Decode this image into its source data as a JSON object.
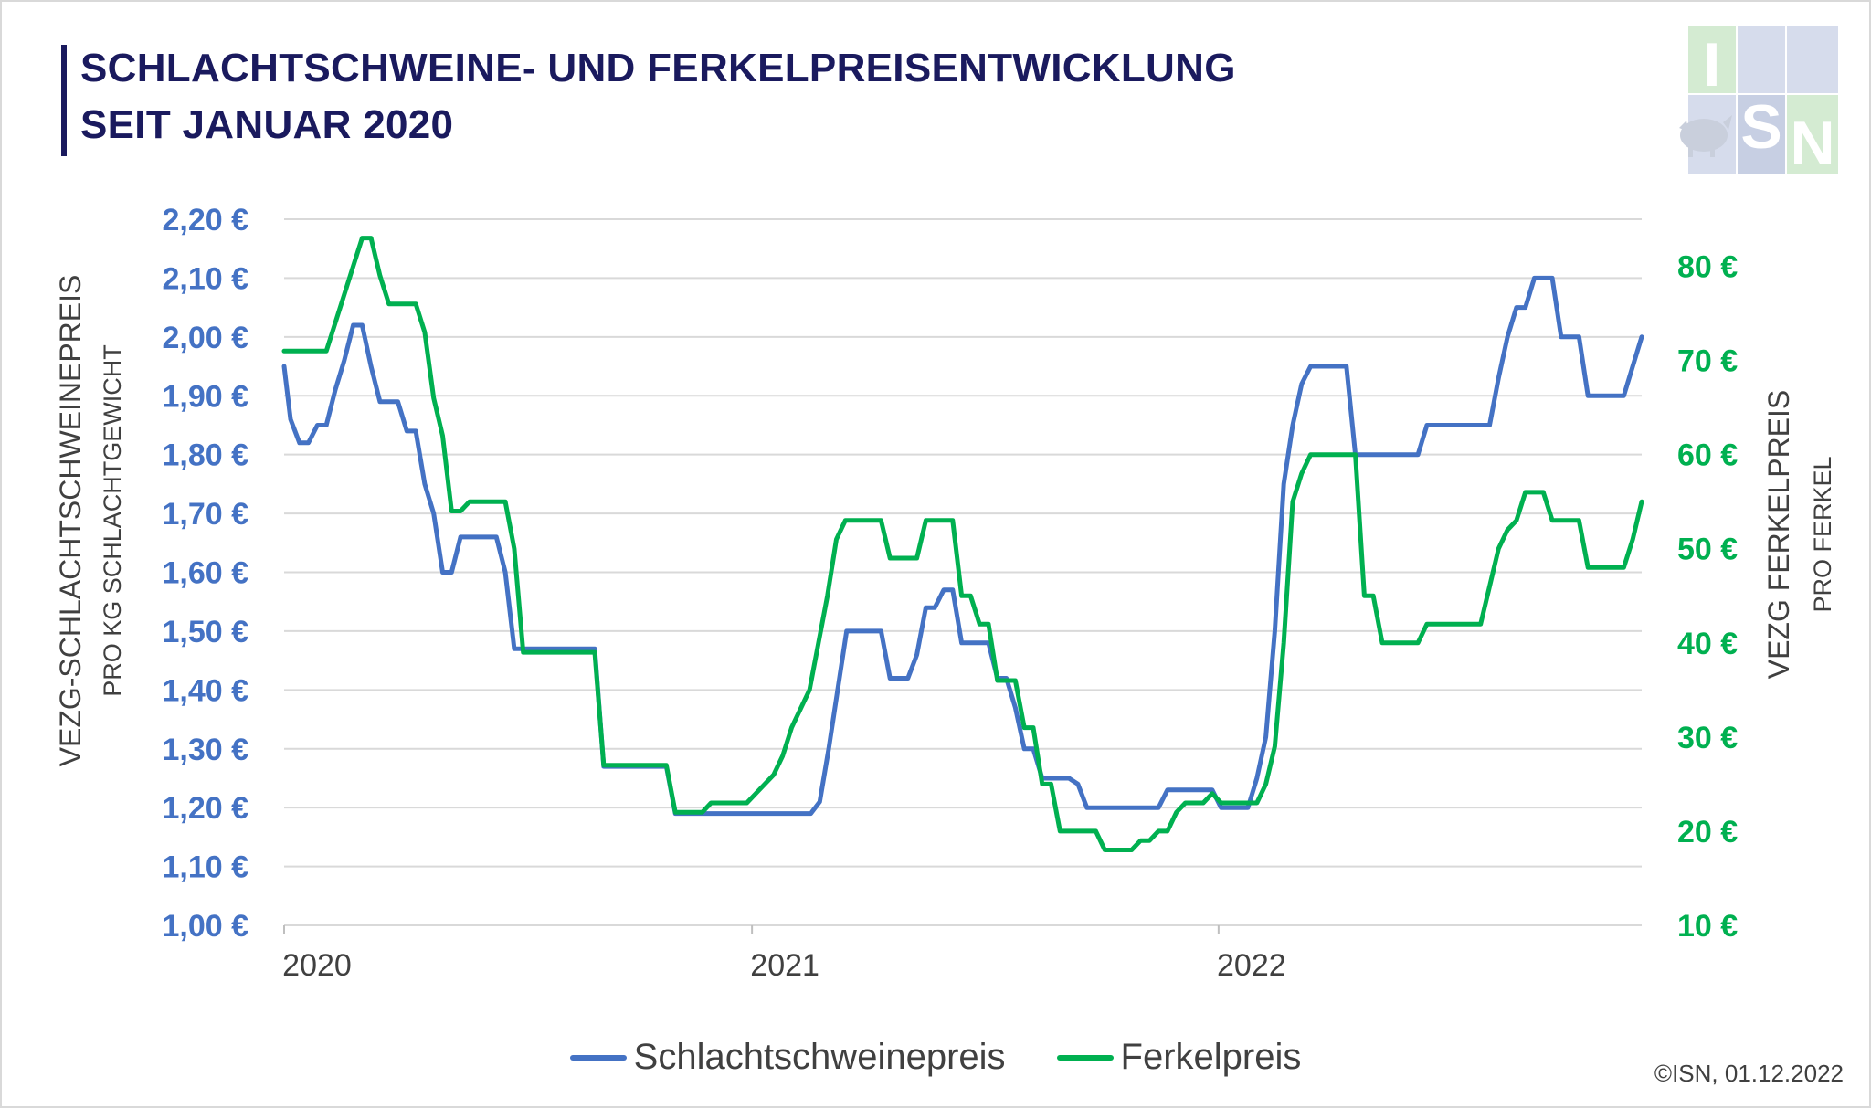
{
  "title_line1": "SCHLACHTSCHWEINE- UND FERKELPREISENTWICKLUNG",
  "title_line2": "SEIT JANUAR 2020",
  "logo": {
    "letters": [
      "I",
      "S",
      "N"
    ],
    "icon": "pig-icon",
    "colors": [
      "#d6dcec",
      "#d4ebd2",
      "#c7cfe3"
    ]
  },
  "credit": "©ISN, 01.12.2022",
  "colors": {
    "slaughter": "#4472c4",
    "piglet": "#00b050",
    "title": "#1a1a5e",
    "grid": "#d9d9d9"
  },
  "chart_data": {
    "type": "line",
    "x_axis": {
      "labels": [
        "2020",
        "2021",
        "2022"
      ],
      "range": [
        "2020-01",
        "2022-11"
      ]
    },
    "left_axis": {
      "label": "VEZG-SCHLACHTSCHWEINEPREIS",
      "sublabel": "PRO KG SCHLACHTGEWICHT",
      "min": 1.0,
      "max": 2.2,
      "ticks": [
        "1,00 €",
        "1,10 €",
        "1,20 €",
        "1,30 €",
        "1,40 €",
        "1,50 €",
        "1,60 €",
        "1,70 €",
        "1,80 €",
        "1,90 €",
        "2,00 €",
        "2,10 €",
        "2,20 €"
      ]
    },
    "right_axis": {
      "label": "VEZG FERKELPREIS",
      "sublabel": "PRO FERKEL",
      "min": 10,
      "max": 85,
      "ticks": [
        "10 €",
        "20 €",
        "30 €",
        "40 €",
        "50 €",
        "60 €",
        "70 €",
        "80 €"
      ]
    },
    "grid": true,
    "legend_position": "bottom",
    "series": [
      {
        "name": "Schlachtschweinepreis",
        "axis": "left",
        "points": [
          [
            "2020-01-01",
            1.95
          ],
          [
            "2020-01-06",
            1.86
          ],
          [
            "2020-01-13",
            1.82
          ],
          [
            "2020-01-20",
            1.82
          ],
          [
            "2020-01-27",
            1.85
          ],
          [
            "2020-02-03",
            1.85
          ],
          [
            "2020-02-10",
            1.91
          ],
          [
            "2020-02-17",
            1.96
          ],
          [
            "2020-02-24",
            2.02
          ],
          [
            "2020-03-02",
            2.02
          ],
          [
            "2020-03-09",
            1.95
          ],
          [
            "2020-03-16",
            1.89
          ],
          [
            "2020-03-23",
            1.89
          ],
          [
            "2020-03-30",
            1.89
          ],
          [
            "2020-04-06",
            1.84
          ],
          [
            "2020-04-13",
            1.84
          ],
          [
            "2020-04-20",
            1.75
          ],
          [
            "2020-04-27",
            1.7
          ],
          [
            "2020-05-04",
            1.6
          ],
          [
            "2020-05-11",
            1.6
          ],
          [
            "2020-05-18",
            1.66
          ],
          [
            "2020-05-25",
            1.66
          ],
          [
            "2020-06-15",
            1.66
          ],
          [
            "2020-06-22",
            1.6
          ],
          [
            "2020-06-29",
            1.47
          ],
          [
            "2020-07-06",
            1.47
          ],
          [
            "2020-08-31",
            1.47
          ],
          [
            "2020-09-07",
            1.27
          ],
          [
            "2020-09-14",
            1.27
          ],
          [
            "2020-10-26",
            1.27
          ],
          [
            "2020-11-02",
            1.19
          ],
          [
            "2020-11-09",
            1.19
          ],
          [
            "2021-02-16",
            1.19
          ],
          [
            "2021-02-23",
            1.21
          ],
          [
            "2021-03-02",
            1.3
          ],
          [
            "2021-03-09",
            1.4
          ],
          [
            "2021-03-16",
            1.5
          ],
          [
            "2021-04-12",
            1.5
          ],
          [
            "2021-04-19",
            1.42
          ],
          [
            "2021-04-26",
            1.42
          ],
          [
            "2021-05-03",
            1.42
          ],
          [
            "2021-05-10",
            1.46
          ],
          [
            "2021-05-17",
            1.54
          ],
          [
            "2021-05-24",
            1.54
          ],
          [
            "2021-05-31",
            1.57
          ],
          [
            "2021-06-07",
            1.57
          ],
          [
            "2021-06-14",
            1.48
          ],
          [
            "2021-06-21",
            1.48
          ],
          [
            "2021-07-05",
            1.48
          ],
          [
            "2021-07-12",
            1.42
          ],
          [
            "2021-07-19",
            1.42
          ],
          [
            "2021-07-26",
            1.37
          ],
          [
            "2021-08-02",
            1.3
          ],
          [
            "2021-08-09",
            1.3
          ],
          [
            "2021-08-16",
            1.25
          ],
          [
            "2021-08-23",
            1.25
          ],
          [
            "2021-09-06",
            1.25
          ],
          [
            "2021-09-13",
            1.24
          ],
          [
            "2021-09-20",
            1.2
          ],
          [
            "2021-09-27",
            1.2
          ],
          [
            "2021-11-15",
            1.2
          ],
          [
            "2021-11-22",
            1.23
          ],
          [
            "2021-11-29",
            1.23
          ],
          [
            "2021-12-27",
            1.23
          ],
          [
            "2022-01-03",
            1.2
          ],
          [
            "2022-01-10",
            1.2
          ],
          [
            "2022-01-24",
            1.2
          ],
          [
            "2022-01-31",
            1.25
          ],
          [
            "2022-02-07",
            1.32
          ],
          [
            "2022-02-14",
            1.5
          ],
          [
            "2022-02-21",
            1.75
          ],
          [
            "2022-02-28",
            1.85
          ],
          [
            "2022-03-07",
            1.92
          ],
          [
            "2022-03-14",
            1.95
          ],
          [
            "2022-03-21",
            1.95
          ],
          [
            "2022-04-11",
            1.95
          ],
          [
            "2022-04-18",
            1.8
          ],
          [
            "2022-04-25",
            1.8
          ],
          [
            "2022-06-06",
            1.8
          ],
          [
            "2022-06-13",
            1.85
          ],
          [
            "2022-06-20",
            1.85
          ],
          [
            "2022-08-01",
            1.85
          ],
          [
            "2022-08-08",
            1.93
          ],
          [
            "2022-08-15",
            2.0
          ],
          [
            "2022-08-22",
            2.05
          ],
          [
            "2022-08-29",
            2.05
          ],
          [
            "2022-09-05",
            2.1
          ],
          [
            "2022-09-19",
            2.1
          ],
          [
            "2022-09-26",
            2.0
          ],
          [
            "2022-10-10",
            2.0
          ],
          [
            "2022-10-17",
            1.9
          ],
          [
            "2022-11-14",
            1.9
          ],
          [
            "2022-11-21",
            1.95
          ],
          [
            "2022-11-28",
            2.0
          ]
        ]
      },
      {
        "name": "Ferkelpreis",
        "axis": "right",
        "points": [
          [
            "2020-01-01",
            71
          ],
          [
            "2020-02-03",
            71
          ],
          [
            "2020-02-10",
            74
          ],
          [
            "2020-02-17",
            77
          ],
          [
            "2020-02-24",
            80
          ],
          [
            "2020-03-02",
            83
          ],
          [
            "2020-03-09",
            83
          ],
          [
            "2020-03-16",
            79
          ],
          [
            "2020-03-23",
            76
          ],
          [
            "2020-04-13",
            76
          ],
          [
            "2020-04-20",
            73
          ],
          [
            "2020-04-27",
            66
          ],
          [
            "2020-05-04",
            62
          ],
          [
            "2020-05-11",
            54
          ],
          [
            "2020-05-18",
            54
          ],
          [
            "2020-05-25",
            55
          ],
          [
            "2020-06-22",
            55
          ],
          [
            "2020-06-29",
            50
          ],
          [
            "2020-07-06",
            39
          ],
          [
            "2020-07-13",
            39
          ],
          [
            "2020-08-31",
            39
          ],
          [
            "2020-09-07",
            27
          ],
          [
            "2020-09-14",
            27
          ],
          [
            "2020-10-26",
            27
          ],
          [
            "2020-11-02",
            22
          ],
          [
            "2020-11-09",
            22
          ],
          [
            "2020-11-23",
            22
          ],
          [
            "2020-11-30",
            23
          ],
          [
            "2020-12-07",
            23
          ],
          [
            "2020-12-28",
            23
          ],
          [
            "2021-01-04",
            24
          ],
          [
            "2021-01-18",
            26
          ],
          [
            "2021-01-25",
            28
          ],
          [
            "2021-02-01",
            31
          ],
          [
            "2021-02-15",
            35
          ],
          [
            "2021-02-22",
            40
          ],
          [
            "2021-03-01",
            45
          ],
          [
            "2021-03-08",
            51
          ],
          [
            "2021-03-15",
            53
          ],
          [
            "2021-03-22",
            53
          ],
          [
            "2021-04-12",
            53
          ],
          [
            "2021-04-19",
            49
          ],
          [
            "2021-04-26",
            49
          ],
          [
            "2021-05-10",
            49
          ],
          [
            "2021-05-17",
            53
          ],
          [
            "2021-05-24",
            53
          ],
          [
            "2021-06-07",
            53
          ],
          [
            "2021-06-14",
            45
          ],
          [
            "2021-06-21",
            45
          ],
          [
            "2021-06-28",
            42
          ],
          [
            "2021-07-05",
            42
          ],
          [
            "2021-07-12",
            36
          ],
          [
            "2021-07-19",
            36
          ],
          [
            "2021-07-26",
            36
          ],
          [
            "2021-08-02",
            31
          ],
          [
            "2021-08-09",
            31
          ],
          [
            "2021-08-16",
            25
          ],
          [
            "2021-08-23",
            25
          ],
          [
            "2021-08-30",
            20
          ],
          [
            "2021-09-06",
            20
          ],
          [
            "2021-09-27",
            20
          ],
          [
            "2021-10-04",
            18
          ],
          [
            "2021-10-11",
            18
          ],
          [
            "2021-10-25",
            18
          ],
          [
            "2021-11-01",
            19
          ],
          [
            "2021-11-08",
            19
          ],
          [
            "2021-11-15",
            20
          ],
          [
            "2021-11-22",
            20
          ],
          [
            "2021-11-29",
            22
          ],
          [
            "2021-12-06",
            23
          ],
          [
            "2021-12-20",
            23
          ],
          [
            "2021-12-27",
            24
          ],
          [
            "2022-01-03",
            23
          ],
          [
            "2022-01-24",
            23
          ],
          [
            "2022-01-31",
            23
          ],
          [
            "2022-02-07",
            25
          ],
          [
            "2022-02-14",
            29
          ],
          [
            "2022-02-21",
            40
          ],
          [
            "2022-02-28",
            55
          ],
          [
            "2022-03-07",
            58
          ],
          [
            "2022-03-14",
            60
          ],
          [
            "2022-04-18",
            60
          ],
          [
            "2022-04-25",
            45
          ],
          [
            "2022-05-02",
            45
          ],
          [
            "2022-05-09",
            40
          ],
          [
            "2022-05-16",
            40
          ],
          [
            "2022-06-06",
            40
          ],
          [
            "2022-06-13",
            42
          ],
          [
            "2022-06-20",
            42
          ],
          [
            "2022-07-25",
            42
          ],
          [
            "2022-08-01",
            46
          ],
          [
            "2022-08-08",
            50
          ],
          [
            "2022-08-15",
            52
          ],
          [
            "2022-08-22",
            53
          ],
          [
            "2022-08-29",
            56
          ],
          [
            "2022-09-12",
            56
          ],
          [
            "2022-09-19",
            53
          ],
          [
            "2022-09-26",
            53
          ],
          [
            "2022-10-10",
            53
          ],
          [
            "2022-10-17",
            48
          ],
          [
            "2022-10-24",
            48
          ],
          [
            "2022-11-14",
            48
          ],
          [
            "2022-11-21",
            51
          ],
          [
            "2022-11-28",
            55
          ]
        ]
      }
    ]
  }
}
